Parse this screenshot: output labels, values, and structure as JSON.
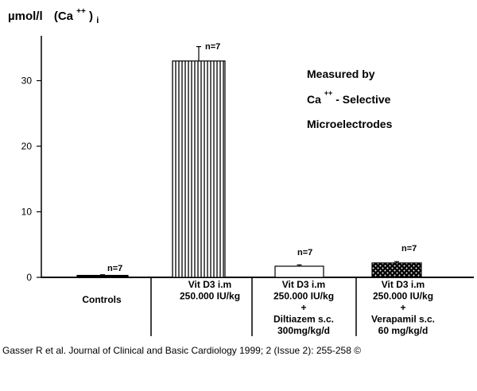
{
  "caption": "Gasser R et al. Journal of Clinical and Basic Cardiology 1999; 2 (Issue 2): 255-258 ©",
  "chart_data": {
    "type": "bar",
    "ylabel_unit": "µmol/l",
    "ylabel_quantity": "(Ca",
    "ylabel_superscript": "++",
    "ylabel_close": ")",
    "ylabel_subscript": "i",
    "ylim": [
      0,
      36
    ],
    "yticks": [
      0,
      10,
      20,
      30
    ],
    "annotation": {
      "line1": "Measured by",
      "line2_prefix": "Ca",
      "line2_superscript": "++",
      "line2_suffix": "- Selective",
      "line3": "Microelectrodes"
    },
    "groups": [
      {
        "label_lines": [
          "Controls"
        ],
        "value": 0.3,
        "error": 0.1,
        "n_label": "n=7",
        "pattern": "solid"
      },
      {
        "label_lines": [
          "Vit D3 i.m",
          "250.000 IU/kg"
        ],
        "value": 33,
        "error": 2.2,
        "n_label": "n=7",
        "pattern": "vertical-lines"
      },
      {
        "label_lines": [
          "Vit D3 i.m",
          "250.000 IU/kg",
          "+",
          "Diltiazem s.c.",
          "300mg/kg/d"
        ],
        "value": 1.7,
        "error": 0.2,
        "n_label": "n=7",
        "pattern": "open"
      },
      {
        "label_lines": [
          "Vit D3 i.m",
          "250.000 IU/kg",
          "+",
          "Verapamil s.c.",
          "60 mg/kg/d"
        ],
        "value": 2.2,
        "error": 0.2,
        "n_label": "n=7",
        "pattern": "stippled"
      }
    ]
  }
}
